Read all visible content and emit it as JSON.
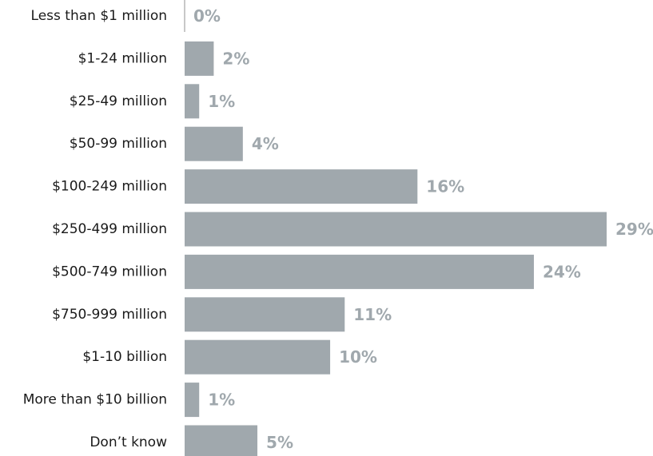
{
  "chart_data": {
    "type": "bar",
    "orientation": "horizontal",
    "categories": [
      "Less than $1 million",
      "$1-24 million",
      "$25-49 million",
      "$50-99 million",
      "$100-249 million",
      "$250-499 million",
      "$500-749 million",
      "$750-999 million",
      "$1-10 billion",
      "More than $10 billion",
      "Don’t know"
    ],
    "values": [
      0,
      2,
      1,
      4,
      16,
      29,
      24,
      11,
      10,
      1,
      5
    ],
    "value_labels": [
      "0%",
      "2%",
      "1%",
      "4%",
      "16%",
      "29%",
      "24%",
      "11%",
      "10%",
      "1%",
      "5%"
    ],
    "title": "",
    "xlabel": "",
    "ylabel": "",
    "xlim": [
      0,
      29
    ],
    "grid": false,
    "legend": "none",
    "colors": {
      "bar": "#a0a8ad",
      "value_label": "#a0a8ad",
      "category_label": "#1a1a1a",
      "axis_line": "#b5b5b5"
    }
  }
}
